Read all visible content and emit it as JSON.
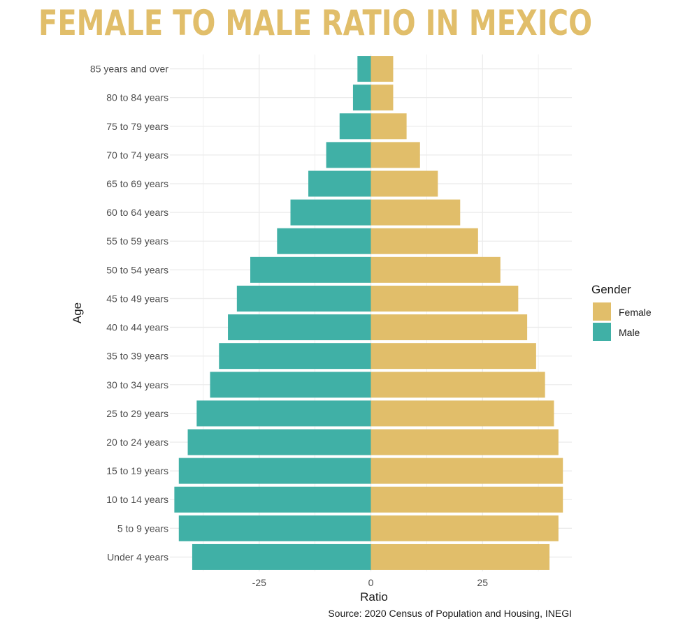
{
  "colors": {
    "female": "#E1BE6A",
    "male": "#40B0A6",
    "title": "#E1BE6A",
    "grid": "#EBEBEB"
  },
  "chart_data": {
    "type": "bar",
    "orientation": "horizontal",
    "title": "FEMALE TO MALE RATIO IN MEXICO",
    "xlabel": "Ratio",
    "ylabel": "Age",
    "xlim": [
      -45,
      45
    ],
    "xticks": [
      -25,
      0,
      25
    ],
    "grid": true,
    "legend": {
      "title": "Gender",
      "placement": "right"
    },
    "caption": "Source: 2020 Census of Population and Housing, INEGI",
    "categories": [
      "Under 4 years",
      "5 to 9 years",
      "10 to 14 years",
      "15 to 19 years",
      "20 to 24 years",
      "25 to 29 years",
      "30 to 34 years",
      "35 to 39 years",
      "40 to 44 years",
      "45 to 49 years",
      "50 to 54 years",
      "55 to 59 years",
      "60 to 64 years",
      "65 to 69 years",
      "70 to 74 years",
      "75 to 79 years",
      "80 to 84 years",
      "85 years and over"
    ],
    "series": [
      {
        "name": "Female",
        "values": [
          40,
          42,
          43,
          43,
          42,
          41,
          39,
          37,
          35,
          33,
          29,
          24,
          20,
          15,
          11,
          8,
          5,
          5
        ]
      },
      {
        "name": "Male",
        "values": [
          -40,
          -43,
          -44,
          -43,
          -41,
          -39,
          -36,
          -34,
          -32,
          -30,
          -27,
          -21,
          -18,
          -14,
          -10,
          -7,
          -4,
          -3
        ]
      }
    ]
  }
}
